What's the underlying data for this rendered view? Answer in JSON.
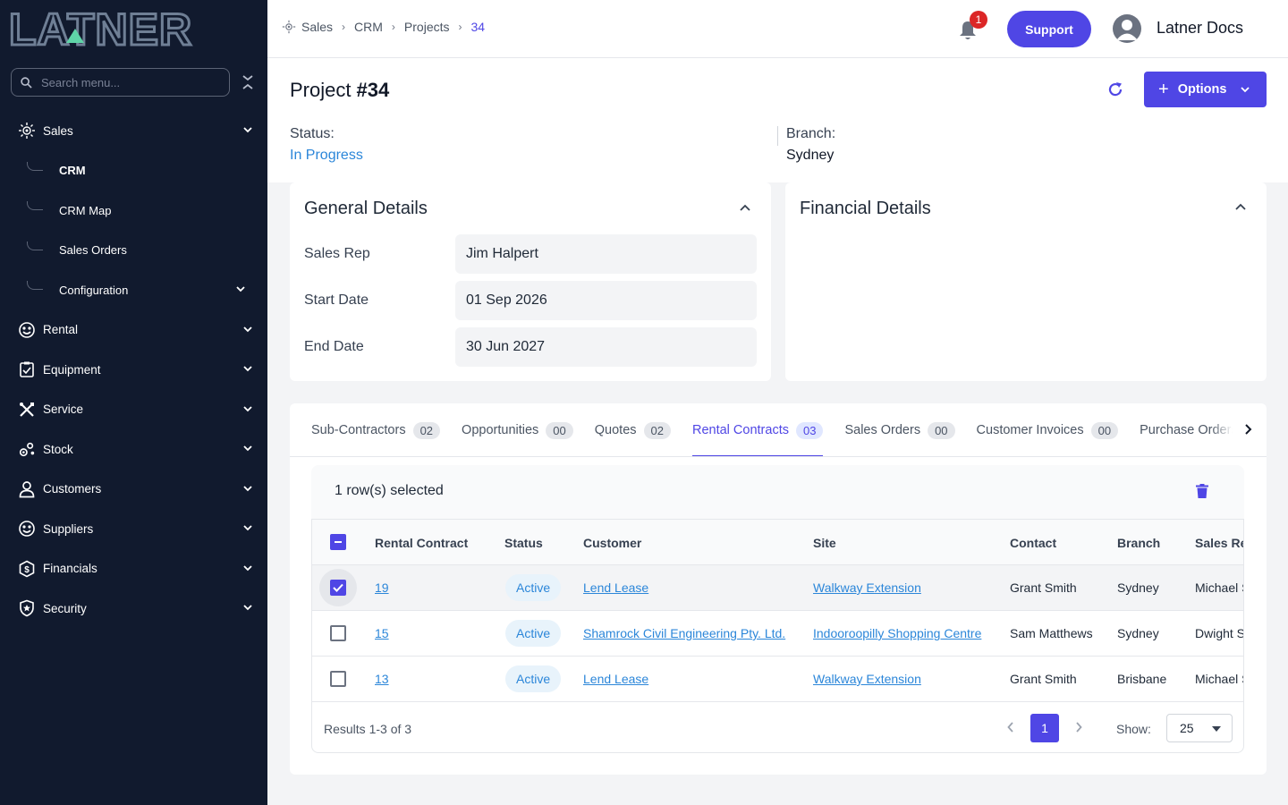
{
  "app": {
    "logo_text": "LATNER"
  },
  "sidebar": {
    "search_placeholder": "Search menu...",
    "items": [
      {
        "label": "Sales",
        "icon": "sales-icon"
      },
      {
        "label": "Rental",
        "icon": "rental-icon"
      },
      {
        "label": "Equipment",
        "icon": "equipment-icon"
      },
      {
        "label": "Service",
        "icon": "service-icon"
      },
      {
        "label": "Stock",
        "icon": "stock-icon"
      },
      {
        "label": "Customers",
        "icon": "customers-icon"
      },
      {
        "label": "Suppliers",
        "icon": "suppliers-icon"
      },
      {
        "label": "Financials",
        "icon": "financials-icon"
      },
      {
        "label": "Security",
        "icon": "security-icon"
      }
    ],
    "sales_sub": [
      {
        "label": "CRM",
        "active": true
      },
      {
        "label": "CRM Map"
      },
      {
        "label": "Sales Orders"
      },
      {
        "label": "Configuration"
      }
    ]
  },
  "header": {
    "breadcrumbs": [
      "Sales",
      "CRM",
      "Projects",
      "34"
    ],
    "notification_count": "1",
    "support_label": "Support",
    "user_name": "Latner Docs"
  },
  "project": {
    "title_prefix": "Project",
    "title_number": "#34",
    "status_label": "Status:",
    "status_value": "In Progress",
    "branch_label": "Branch:",
    "branch_value": "Sydney",
    "options_label": "Options"
  },
  "general_details": {
    "title": "General Details",
    "rows": [
      {
        "label": "Sales Rep",
        "value": "Jim Halpert"
      },
      {
        "label": "Start Date",
        "value": "01 Sep 2026"
      },
      {
        "label": "End Date",
        "value": "30 Jun 2027"
      }
    ]
  },
  "financial_details": {
    "title": "Financial Details"
  },
  "tabs": [
    {
      "label": "Sub-Contractors",
      "count": "02"
    },
    {
      "label": "Opportunities",
      "count": "00"
    },
    {
      "label": "Quotes",
      "count": "02"
    },
    {
      "label": "Rental Contracts",
      "count": "03",
      "active": true
    },
    {
      "label": "Sales Orders",
      "count": "00"
    },
    {
      "label": "Customer Invoices",
      "count": "00"
    },
    {
      "label": "Purchase Orders",
      "count": ""
    }
  ],
  "table": {
    "selection_text": "1 row(s) selected",
    "columns": [
      "Rental Contract",
      "Status",
      "Customer",
      "Site",
      "Contact",
      "Branch",
      "Sales Rep"
    ],
    "rows": [
      {
        "contract": "19",
        "status": "Active",
        "customer": "Lend Lease",
        "site": "Walkway Extension",
        "contact": "Grant Smith",
        "branch": "Sydney",
        "sales_rep": "Michael Scott",
        "selected": true
      },
      {
        "contract": "15",
        "status": "Active",
        "customer": "Shamrock Civil Engineering Pty. Ltd.",
        "site": "Indooroopilly Shopping Centre",
        "contact": "Sam Matthews",
        "branch": "Sydney",
        "sales_rep": "Dwight Schrute",
        "selected": false
      },
      {
        "contract": "13",
        "status": "Active",
        "customer": "Lend Lease",
        "site": "Walkway Extension",
        "contact": "Grant Smith",
        "branch": "Brisbane",
        "sales_rep": "Michael Scott",
        "selected": false
      }
    ],
    "results_text": "Results 1-3 of 3",
    "current_page": "1",
    "show_label": "Show:",
    "page_size": "25"
  },
  "colors": {
    "accent": "#4f46e5",
    "sidebar_bg": "#111a2e",
    "link": "#2b86d9",
    "logo_accent": "#5fd4a8"
  }
}
